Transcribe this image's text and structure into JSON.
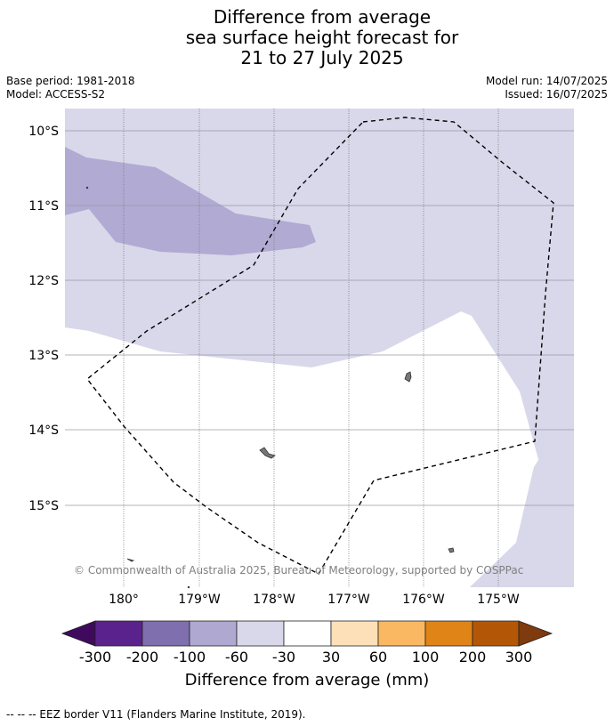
{
  "title": {
    "line1": "Difference from average",
    "line2": "sea surface height forecast for",
    "line3": "21 to 27 July 2025"
  },
  "meta": {
    "base_period": "Base period: 1981-2018",
    "model": "Model: ACCESS-S2",
    "model_run": "Model run: 14/07/2025",
    "issued": "Issued: 16/07/2025"
  },
  "map": {
    "lat_labels": [
      "10°S",
      "11°S",
      "12°S",
      "13°S",
      "14°S",
      "15°S"
    ],
    "lon_labels": [
      "180°",
      "179°W",
      "178°W",
      "177°W",
      "176°W",
      "175°W"
    ],
    "copyright": "© Commonwealth of Australia 2025, Bureau of Meteorology, supported by COSPPac"
  },
  "colorbar": {
    "ticks": [
      "-300",
      "-200",
      "-100",
      "-60",
      "-30",
      "30",
      "60",
      "100",
      "200",
      "300"
    ],
    "colors": [
      "#3f0a5e",
      "#5a228c",
      "#7f6fae",
      "#afa8d1",
      "#d8d8ea",
      "#ffffff",
      "#fde0b8",
      "#fbb862",
      "#e08418",
      "#b35707",
      "#7f3a0d"
    ],
    "label": "Difference from average (mm)"
  },
  "legend": {
    "eez": "--  --  -- EEZ border V11 (Flanders Marine Institute, 2019)."
  }
}
